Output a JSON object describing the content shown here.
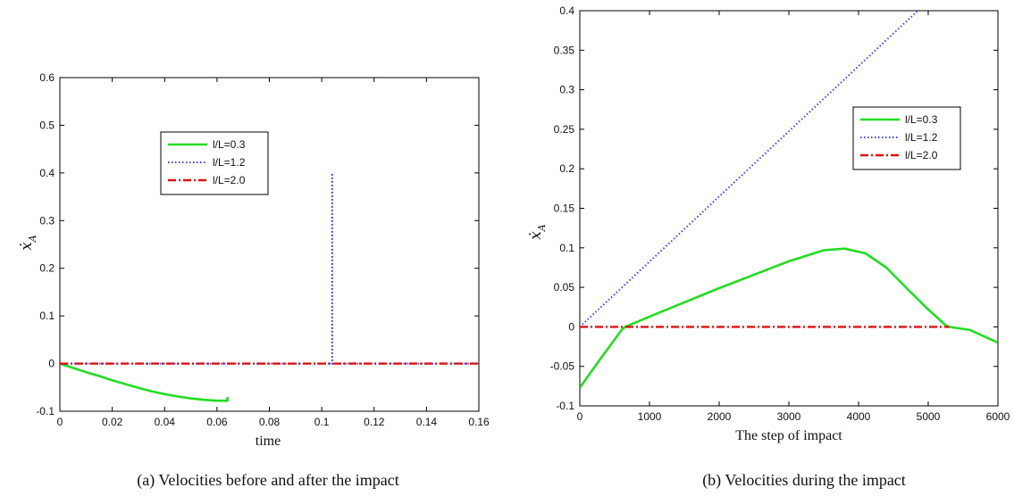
{
  "chart_data": [
    {
      "type": "line",
      "caption": "(a) Velocities before and after the impact",
      "xlabel": "time",
      "ylabel": "ẋ",
      "ylabel_sub": "A",
      "xlim": [
        0,
        0.16
      ],
      "ylim": [
        -0.1,
        0.6
      ],
      "xticks": [
        "0",
        "0.02",
        "0.04",
        "0.06",
        "0.08",
        "0.1",
        "0.12",
        "0.14",
        "0.16"
      ],
      "yticks": [
        "-0.1",
        "0",
        "0.1",
        "0.2",
        "0.3",
        "0.4",
        "0.5",
        "0.6"
      ],
      "legend_position": "upper-center",
      "series": [
        {
          "name": "l/L=0.3",
          "color": "#22dd22",
          "style": "solid",
          "x": [
            0,
            0.005,
            0.01,
            0.015,
            0.02,
            0.025,
            0.03,
            0.035,
            0.04,
            0.045,
            0.05,
            0.055,
            0.06,
            0.064,
            0.064
          ],
          "y": [
            0,
            -0.009,
            -0.018,
            -0.026,
            -0.035,
            -0.043,
            -0.051,
            -0.058,
            -0.064,
            -0.069,
            -0.073,
            -0.076,
            -0.078,
            -0.078,
            -0.07
          ]
        },
        {
          "name": "l/L=1.2",
          "color": "#4444ee",
          "style": "dotted",
          "x": [
            0,
            0.104,
            0.104,
            0.104,
            0.16
          ],
          "y": [
            0,
            0,
            0.4,
            0,
            0
          ]
        },
        {
          "name": "l/L=2.0",
          "color": "#dd1111",
          "style": "dashdot",
          "x": [
            0,
            0.16
          ],
          "y": [
            0,
            0
          ]
        }
      ]
    },
    {
      "type": "line",
      "caption": "(b) Velocities during the impact",
      "xlabel": "The step of impact",
      "ylabel": "ẋ",
      "ylabel_sub": "A",
      "xlim": [
        0,
        6000
      ],
      "ylim": [
        -0.1,
        0.4
      ],
      "xticks": [
        "0",
        "1000",
        "2000",
        "3000",
        "4000",
        "5000",
        "6000"
      ],
      "yticks": [
        "-0.1",
        "-0.05",
        "0",
        "0.05",
        "0.1",
        "0.15",
        "0.2",
        "0.25",
        "0.3",
        "0.35",
        "0.4"
      ],
      "legend_position": "upper-right",
      "series": [
        {
          "name": "l/L=0.3",
          "color": "#22dd22",
          "style": "solid",
          "x": [
            0,
            300,
            600,
            650,
            1000,
            1500,
            2000,
            2500,
            3000,
            3500,
            3800,
            4100,
            4400,
            4700,
            5000,
            5250,
            5300,
            5600,
            6000
          ],
          "y": [
            -0.077,
            -0.04,
            -0.004,
            0,
            0.013,
            0.031,
            0.049,
            0.066,
            0.083,
            0.097,
            0.099,
            0.093,
            0.075,
            0.048,
            0.022,
            0.002,
            0,
            -0.004,
            -0.02
          ]
        },
        {
          "name": "l/L=1.2",
          "color": "#4444ee",
          "style": "dotted",
          "x": [
            0,
            4850
          ],
          "y": [
            0,
            0.4
          ]
        },
        {
          "name": "l/L=2.0",
          "color": "#dd1111",
          "style": "dashdot",
          "x": [
            0,
            5300
          ],
          "y": [
            0,
            0
          ]
        }
      ]
    }
  ]
}
